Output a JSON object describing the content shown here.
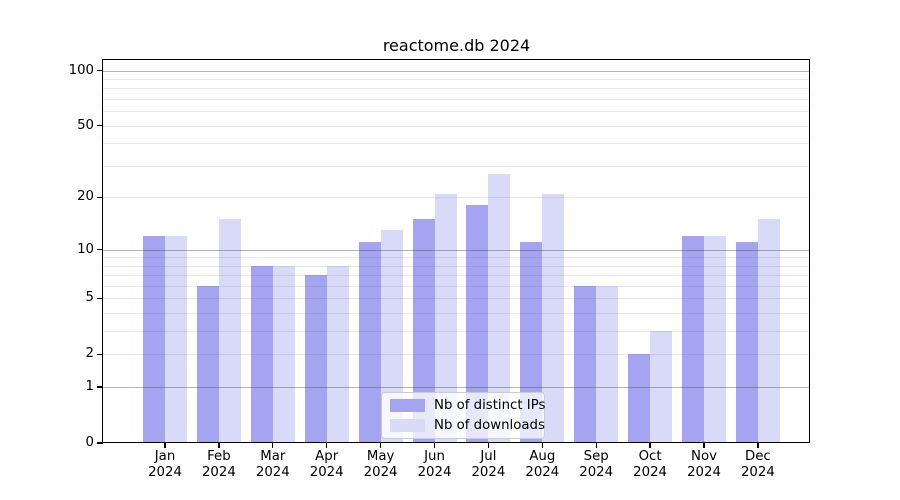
{
  "title": "reactome.db 2024",
  "chart_data": {
    "type": "bar",
    "title": "reactome.db 2024",
    "yscale": "log1p",
    "grid": "horizontal",
    "legend_position": "lower-center-inside",
    "xlabel": "",
    "ylabel": "",
    "ylim": [
      0,
      115
    ],
    "categories": [
      "Jan 2024",
      "Feb 2024",
      "Mar 2024",
      "Apr 2024",
      "May 2024",
      "Jun 2024",
      "Jul 2024",
      "Aug 2024",
      "Sep 2024",
      "Oct 2024",
      "Nov 2024",
      "Dec 2024"
    ],
    "series": [
      {
        "name": "Nb of distinct IPs",
        "color": "#a4a4f0",
        "values": [
          12,
          6,
          8,
          7,
          11,
          15,
          18,
          11,
          6,
          2,
          12,
          11
        ]
      },
      {
        "name": "Nb of downloads",
        "color": "#d9d9f8",
        "values": [
          12,
          15,
          8,
          8,
          13,
          21,
          27,
          21,
          6,
          3,
          12,
          15
        ]
      }
    ],
    "yticks_labeled": [
      0,
      1,
      2,
      5,
      10,
      20,
      50,
      100
    ],
    "gridlines_major": [
      1,
      10,
      100
    ],
    "gridlines_minor": [
      2,
      3,
      4,
      5,
      6,
      7,
      8,
      9,
      20,
      30,
      40,
      50,
      60,
      70,
      80,
      90
    ]
  }
}
